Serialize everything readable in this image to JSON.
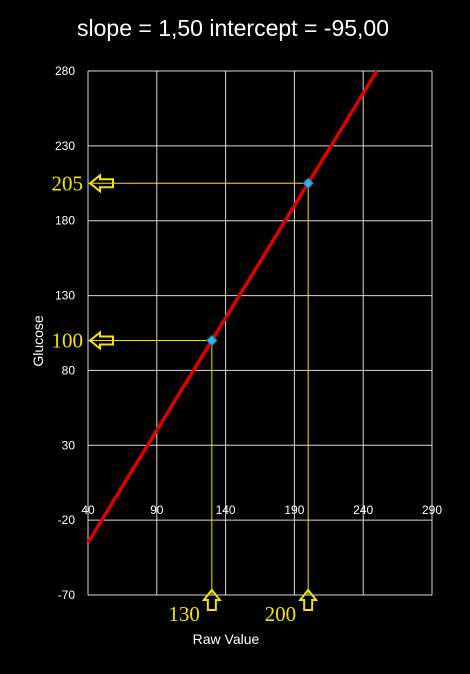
{
  "chart_data": {
    "type": "line",
    "title": "slope = 1,50 intercept = -95,00",
    "xlabel": "Raw Value",
    "ylabel": "Glucose",
    "xlim": [
      40,
      290
    ],
    "ylim": [
      -70,
      280
    ],
    "x_ticks": [
      "40",
      "90",
      "140",
      "190",
      "240",
      "290"
    ],
    "y_ticks": [
      "-70",
      "-20",
      "30",
      "80",
      "130",
      "180",
      "230",
      "280"
    ],
    "grid": true,
    "legend": "none",
    "line": {
      "slope": 1.5,
      "intercept": -95,
      "x": [
        40,
        250
      ],
      "y": [
        -35,
        280
      ],
      "color": "#e00000"
    },
    "points": [
      {
        "x": 130,
        "y": 100,
        "color": "#29b6e8"
      },
      {
        "x": 200,
        "y": 205,
        "color": "#29b6e8"
      }
    ],
    "guide_color": "#f2e600",
    "callouts": {
      "y": [
        {
          "value": 205,
          "label": "205"
        },
        {
          "value": 100,
          "label": "100"
        }
      ],
      "x": [
        {
          "value": 130,
          "label": "130"
        },
        {
          "value": 200,
          "label": "200"
        }
      ]
    }
  }
}
